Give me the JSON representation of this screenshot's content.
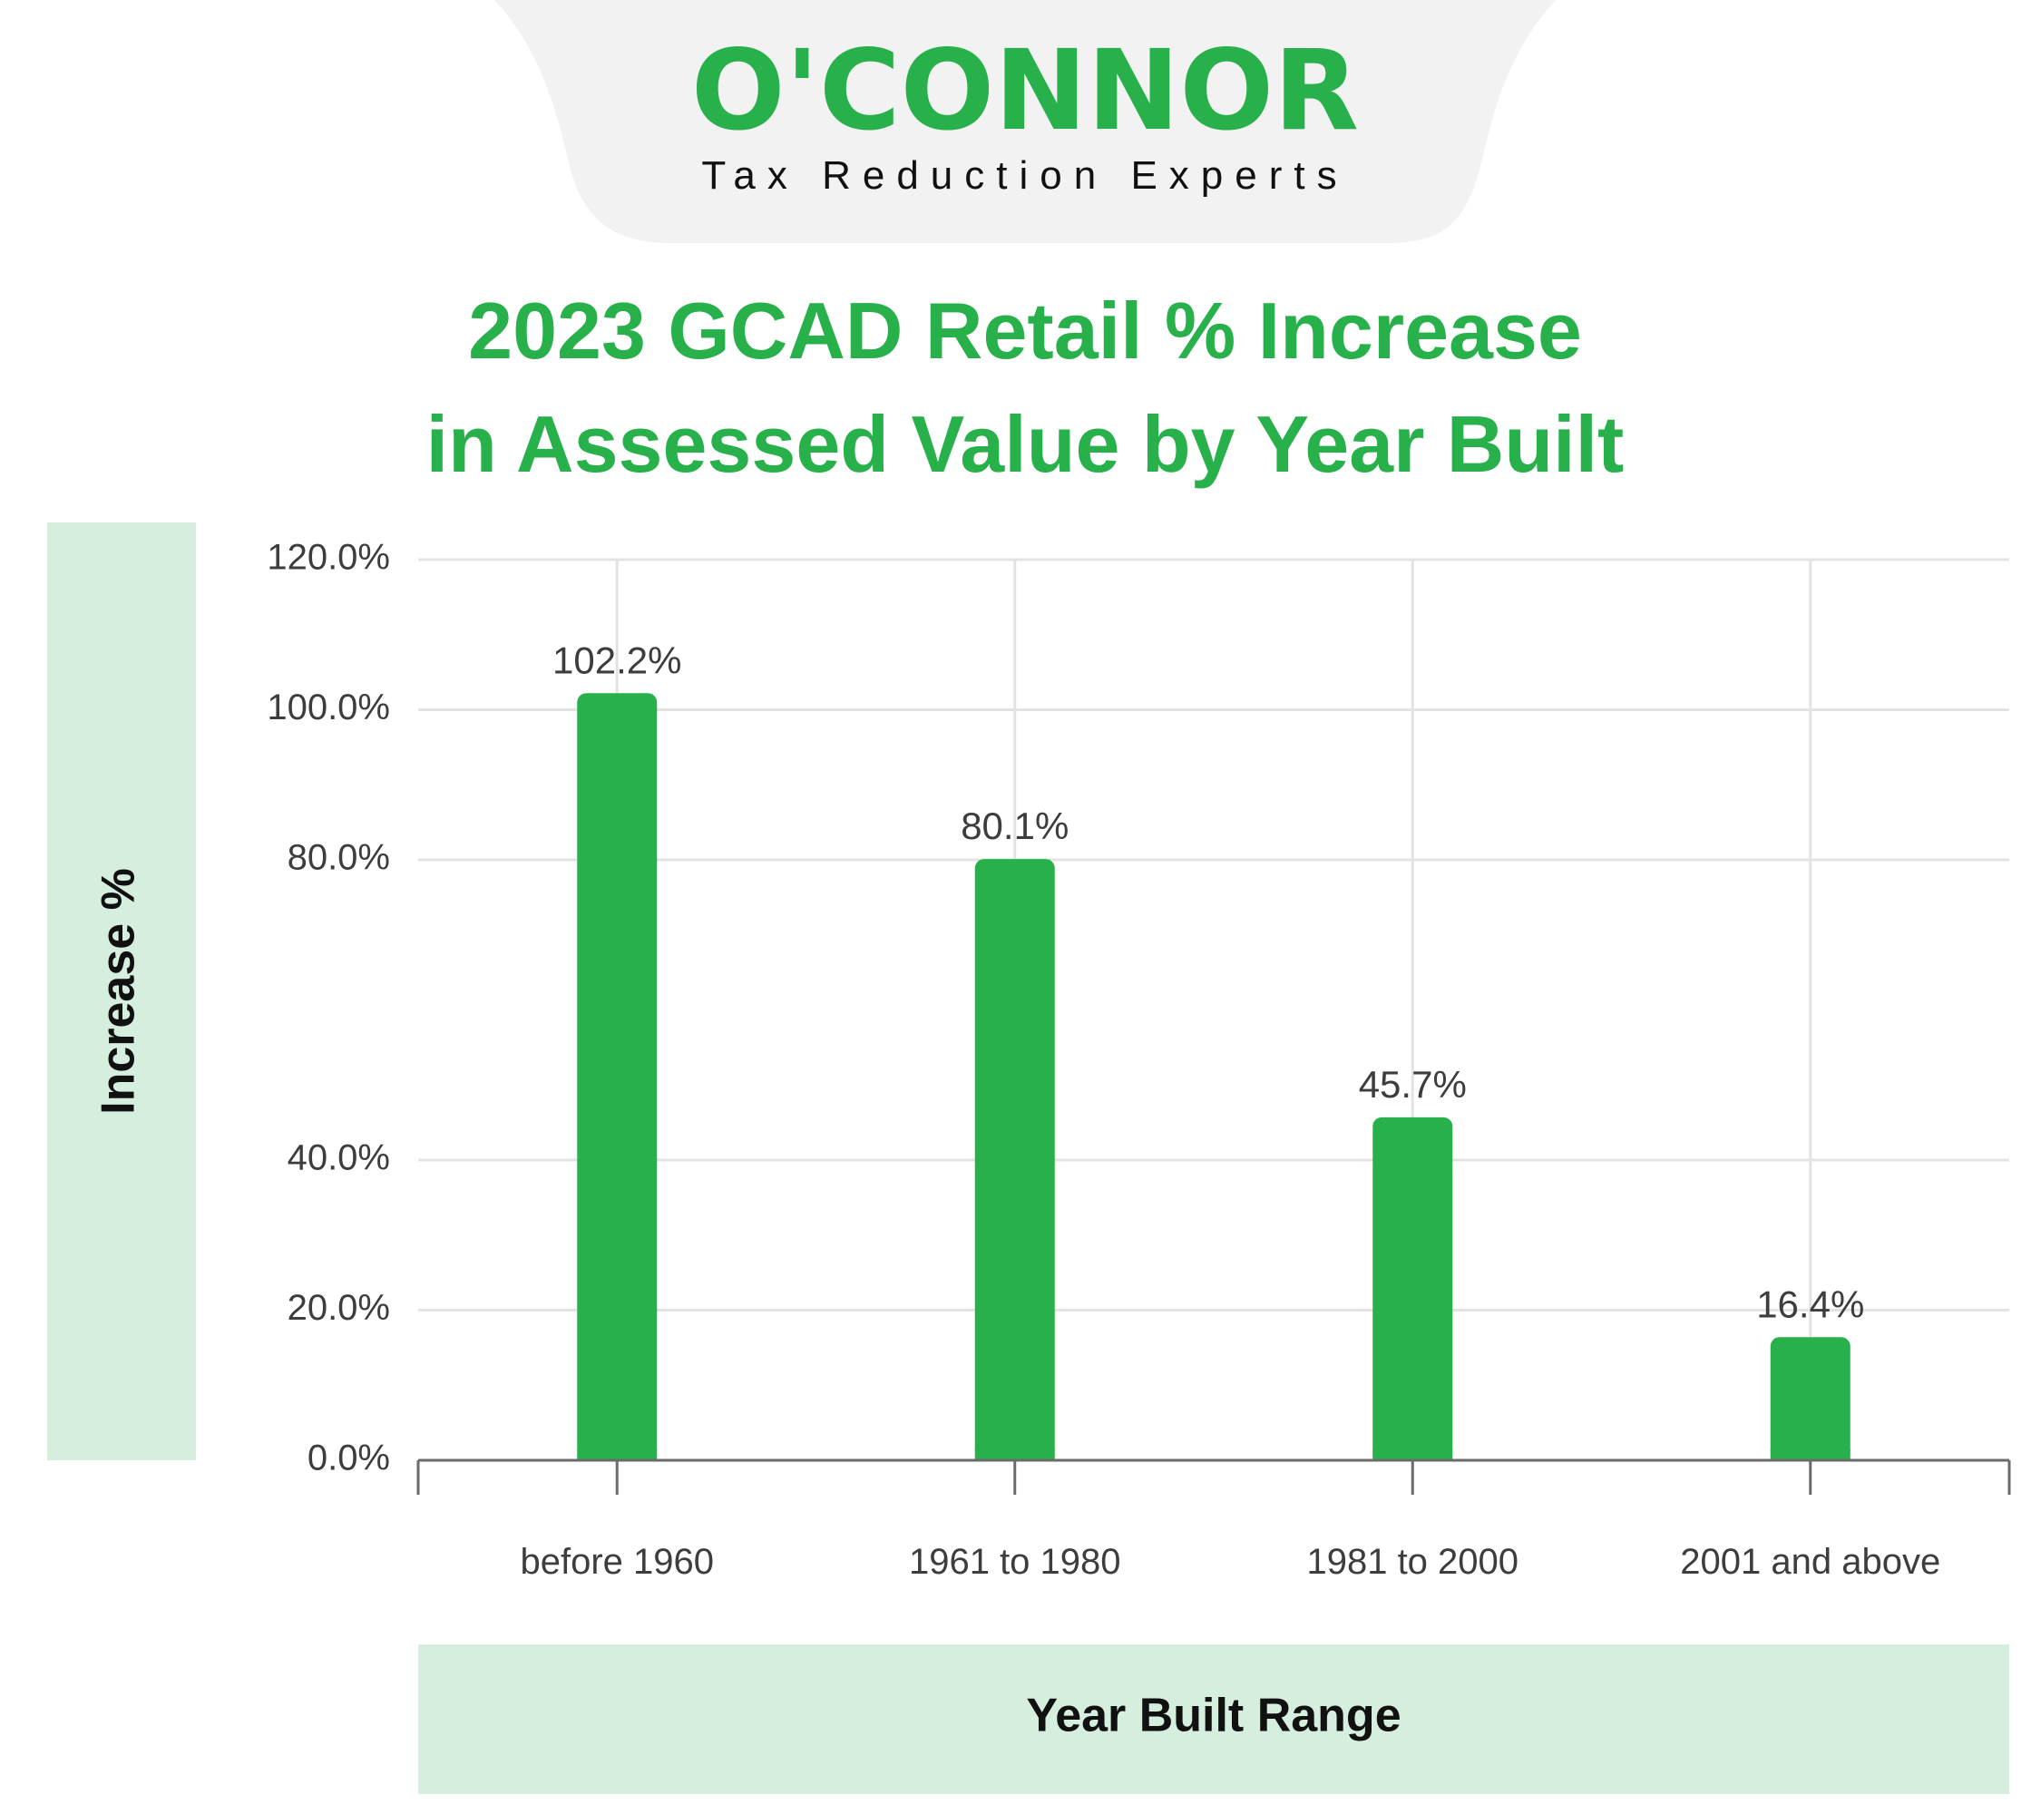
{
  "brand": {
    "name": "O'CONNOR",
    "tagline": "Tax Reduction Experts"
  },
  "colors": {
    "accent": "#28b04b",
    "bar": "#28b04b",
    "axis_panel": "#d5eedd",
    "header_bg": "#f2f2f2",
    "grid": "#e3e3e3",
    "text": "#3d3d3d"
  },
  "chart_data": {
    "type": "bar",
    "title": "2023 GCAD Retail % Increase in Assessed Value by Year Built",
    "title_lines": [
      "2023 GCAD Retail % Increase",
      "in Assessed Value by Year Built"
    ],
    "xlabel": "Year Built Range",
    "ylabel": "Increase %",
    "categories": [
      "before 1960",
      "1961 to 1980",
      "1981 to 2000",
      "2001 and above"
    ],
    "values": [
      102.2,
      80.1,
      45.7,
      16.4
    ],
    "data_labels": [
      "102.2%",
      "80.1%",
      "45.7%",
      "16.4%"
    ],
    "ylim": [
      0,
      120
    ],
    "y_ticks": [
      0,
      20,
      40,
      80,
      100,
      120
    ],
    "y_tick_labels": [
      "0.0%",
      "20.0%",
      "40.0%",
      "80.0%",
      "100.0%",
      "120.0%"
    ],
    "grid": true,
    "legend": "none"
  }
}
